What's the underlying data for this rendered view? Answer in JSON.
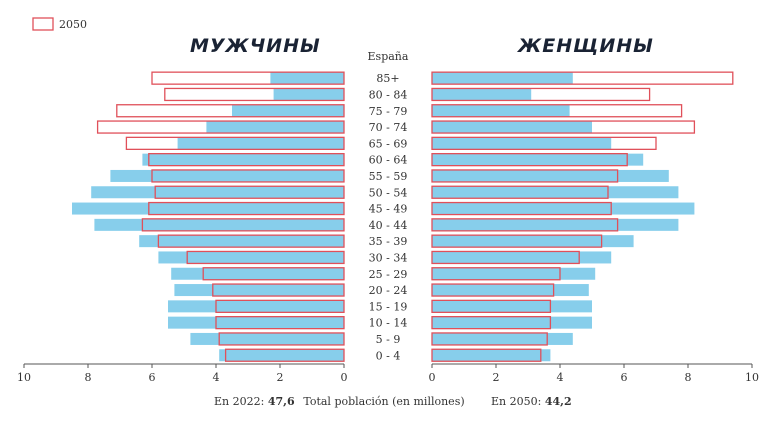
{
  "legend": {
    "label": "2050"
  },
  "titles": {
    "men": "МУЖЧИНЫ",
    "women": "ЖЕНЩИНЫ",
    "country": "España"
  },
  "footer": {
    "left_label": "En 2022: ",
    "left_value": "47,6",
    "center": "Total población (en millones)",
    "right_label": "En 2050: ",
    "right_value": "44,2"
  },
  "colors": {
    "bar_2022": "#87CEEB",
    "outline_2050": "#E0505A",
    "title": "#1a2334"
  },
  "chart_data": {
    "type": "bar",
    "orientation": "horizontal-population-pyramid",
    "categories": [
      "85+",
      "80 - 84",
      "75 - 79",
      "70 - 74",
      "65 - 69",
      "60 - 64",
      "55 - 59",
      "50 - 54",
      "45 - 49",
      "40 - 44",
      "35 - 39",
      "30 - 34",
      "25 - 29",
      "20 - 24",
      "15 - 19",
      "10 - 14",
      "5 - 9",
      "0 - 4"
    ],
    "xlim": [
      0,
      10
    ],
    "x_ticks": [
      0,
      2,
      4,
      6,
      8,
      10
    ],
    "x_tick_labels": [
      "0",
      "2",
      "4",
      "6",
      "8",
      "10"
    ],
    "series": [
      {
        "name": "",
        "side": "men",
        "style": "filled",
        "values": [
          2.3,
          2.2,
          3.5,
          4.3,
          5.2,
          6.3,
          7.3,
          7.9,
          8.5,
          7.8,
          6.4,
          5.8,
          5.4,
          5.3,
          5.5,
          5.5,
          4.8,
          3.9
        ]
      },
      {
        "name": "2050",
        "side": "men",
        "style": "outline",
        "values": [
          6.0,
          5.6,
          7.1,
          7.7,
          6.8,
          6.1,
          6.0,
          5.9,
          6.1,
          6.3,
          5.8,
          4.9,
          4.4,
          4.1,
          4.0,
          4.0,
          3.9,
          3.7
        ]
      },
      {
        "name": "",
        "side": "women",
        "style": "filled",
        "values": [
          4.4,
          3.1,
          4.3,
          5.0,
          5.6,
          6.6,
          7.4,
          7.7,
          8.2,
          7.7,
          6.3,
          5.6,
          5.1,
          4.9,
          5.0,
          5.0,
          4.4,
          3.7
        ]
      },
      {
        "name": "2050",
        "side": "women",
        "style": "outline",
        "values": [
          9.4,
          6.8,
          7.8,
          8.2,
          7.0,
          6.1,
          5.8,
          5.5,
          5.6,
          5.8,
          5.3,
          4.6,
          4.0,
          3.8,
          3.7,
          3.7,
          3.6,
          3.4
        ]
      }
    ]
  }
}
